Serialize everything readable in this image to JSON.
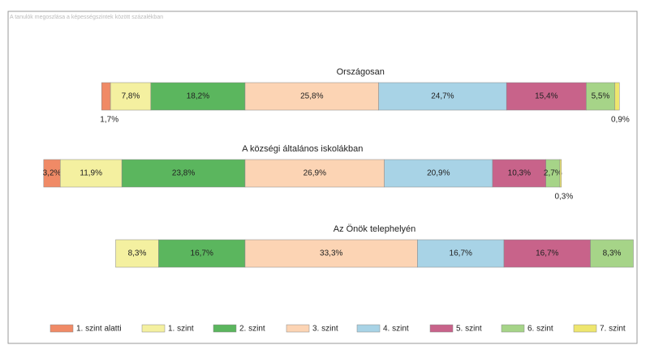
{
  "chart_data": {
    "type": "stacked-bar-horizontal",
    "subtitle": "A tanulók megoszlása a képességszintek között százalékban",
    "categories": [
      "Országosan",
      "A községi általános iskolákban",
      "Az Önök telephelyén"
    ],
    "series": [
      {
        "name": "1. szint alatti",
        "color": "#f08a66",
        "values": [
          1.7,
          3.2,
          0
        ],
        "value_labels": [
          "1,7%",
          "3,2%",
          null
        ]
      },
      {
        "name": "1. szint",
        "color": "#f4f0a0",
        "values": [
          7.8,
          11.9,
          8.3
        ],
        "value_labels": [
          "7,8%",
          "11,9%",
          "8,3%"
        ]
      },
      {
        "name": "2. szint",
        "color": "#5bb65e",
        "values": [
          18.2,
          23.8,
          16.7
        ],
        "value_labels": [
          "18,2%",
          "23,8%",
          "16,7%"
        ]
      },
      {
        "name": "3. szint",
        "color": "#fcd4b4",
        "values": [
          25.8,
          26.9,
          33.3
        ],
        "value_labels": [
          "25,8%",
          "26,9%",
          "33,3%"
        ]
      },
      {
        "name": "4. szint",
        "color": "#a8d3e6",
        "values": [
          24.7,
          20.9,
          16.7
        ],
        "value_labels": [
          "24,7%",
          "20,9%",
          "16,7%"
        ]
      },
      {
        "name": "5. szint",
        "color": "#c8638a",
        "values": [
          15.4,
          10.3,
          16.7
        ],
        "value_labels": [
          "15,4%",
          "10,3%",
          "16,7%"
        ]
      },
      {
        "name": "6. szint",
        "color": "#a6d488",
        "values": [
          5.5,
          2.7,
          8.3
        ],
        "value_labels": [
          "5,5%",
          "2,7%",
          "8,3%"
        ]
      },
      {
        "name": "7. szint",
        "color": "#eee66e",
        "values": [
          0.9,
          0.3,
          0
        ],
        "value_labels": [
          "0,9%",
          "0,3%",
          null
        ]
      }
    ]
  }
}
